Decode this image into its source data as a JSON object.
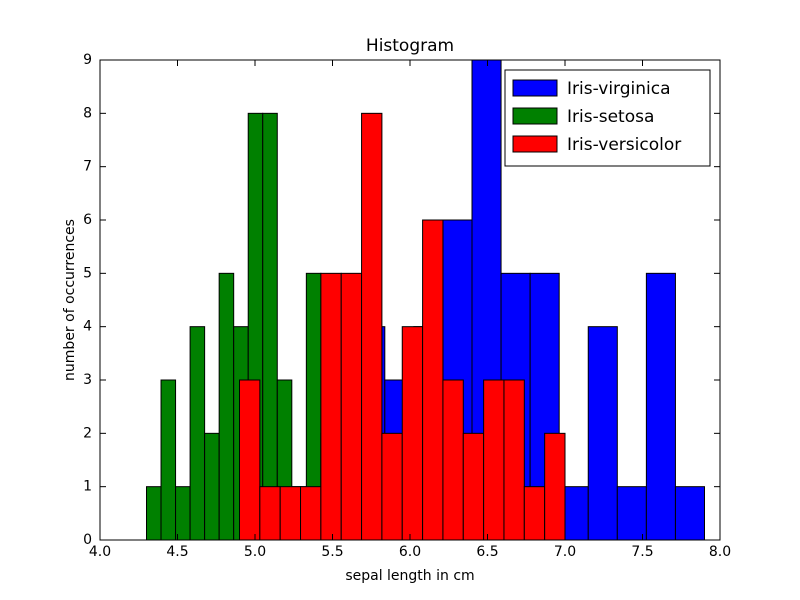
{
  "chart_data": {
    "type": "histogram",
    "title": "Histogram",
    "xlabel": "sepal length in cm",
    "ylabel": "number of occurrences",
    "xlim": [
      4.0,
      8.0
    ],
    "ylim": [
      0,
      9
    ],
    "xticks": [
      {
        "value": 4.0,
        "label": "4.0"
      },
      {
        "value": 4.5,
        "label": "4.5"
      },
      {
        "value": 5.0,
        "label": "5.0"
      },
      {
        "value": 5.5,
        "label": "5.5"
      },
      {
        "value": 6.0,
        "label": "6.0"
      },
      {
        "value": 6.5,
        "label": "6.5"
      },
      {
        "value": 7.0,
        "label": "7.0"
      },
      {
        "value": 7.5,
        "label": "7.5"
      },
      {
        "value": 8.0,
        "label": "8.0"
      }
    ],
    "yticks": [
      0,
      1,
      2,
      3,
      4,
      5,
      6,
      7,
      8,
      9
    ],
    "legend": "upper right",
    "series": [
      {
        "name": "Iris-virginica",
        "color": "#0000ff",
        "bins": [
          4.9,
          5.0875,
          5.275,
          5.4625,
          5.65,
          5.8375,
          6.025,
          6.2125,
          6.4,
          6.5875,
          6.775,
          6.9625,
          7.15,
          7.3375,
          7.525,
          7.7125,
          7.9
        ],
        "values": [
          1,
          0,
          0,
          1,
          4,
          3,
          4,
          6,
          9,
          5,
          5,
          1,
          4,
          1,
          5,
          1
        ]
      },
      {
        "name": "Iris-setosa",
        "color": "#008000",
        "bins": [
          4.3,
          4.39375,
          4.4875,
          4.58125,
          4.675,
          4.76875,
          4.8625,
          4.95625,
          5.05,
          5.14375,
          5.2375,
          5.33125,
          5.425,
          5.51875,
          5.6125,
          5.70625,
          5.8
        ],
        "values": [
          1,
          3,
          1,
          4,
          2,
          5,
          4,
          8,
          8,
          3,
          1,
          5,
          2,
          0,
          2,
          1
        ]
      },
      {
        "name": "Iris-versicolor",
        "color": "#ff0000",
        "bins": [
          4.9,
          5.03125,
          5.1625,
          5.29375,
          5.425,
          5.55625,
          5.6875,
          5.81875,
          5.95,
          6.08125,
          6.2125,
          6.34375,
          6.475,
          6.60625,
          6.7375,
          6.86875,
          7.0
        ],
        "values": [
          3,
          1,
          1,
          1,
          5,
          5,
          8,
          2,
          4,
          6,
          3,
          2,
          3,
          3,
          1,
          2
        ]
      }
    ]
  }
}
